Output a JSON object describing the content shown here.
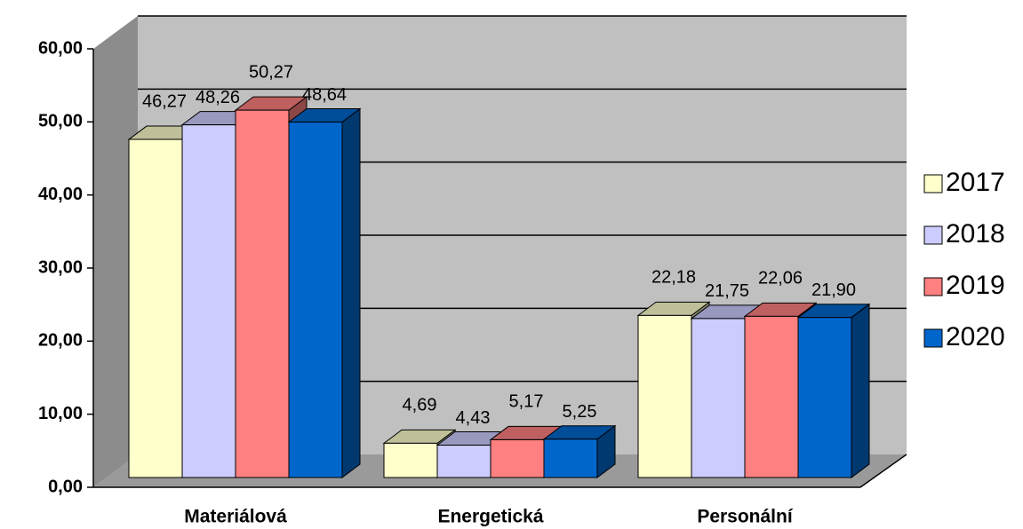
{
  "chart_data": {
    "type": "bar3d",
    "categories": [
      "Materiálová",
      "Energetická",
      "Personální"
    ],
    "series": [
      {
        "name": "2017",
        "color": "#ffffcc",
        "values": [
          46.27,
          4.69,
          22.18
        ],
        "value_labels": [
          "46,27",
          "4,69",
          "22,18"
        ]
      },
      {
        "name": "2018",
        "color": "#ccccff",
        "values": [
          48.26,
          4.43,
          21.75
        ],
        "value_labels": [
          "48,26",
          "4,43",
          "21,75"
        ]
      },
      {
        "name": "2019",
        "color": "#ff8080",
        "values": [
          50.27,
          5.17,
          22.06
        ],
        "value_labels": [
          "50,27",
          "5,17",
          "22,06"
        ]
      },
      {
        "name": "2020",
        "color": "#0066cc",
        "values": [
          48.64,
          5.25,
          21.9
        ],
        "value_labels": [
          "48,64",
          "5,25",
          "21,90"
        ]
      }
    ],
    "ylim": [
      0,
      60
    ],
    "yticks": [
      {
        "value": 0,
        "label": "0,00"
      },
      {
        "value": 10,
        "label": "10,00"
      },
      {
        "value": 20,
        "label": "20,00"
      },
      {
        "value": 30,
        "label": "30,00"
      },
      {
        "value": 40,
        "label": "40,00"
      },
      {
        "value": 50,
        "label": "50,00"
      },
      {
        "value": 60,
        "label": "60,00"
      }
    ],
    "grid": true,
    "legend": "right"
  }
}
